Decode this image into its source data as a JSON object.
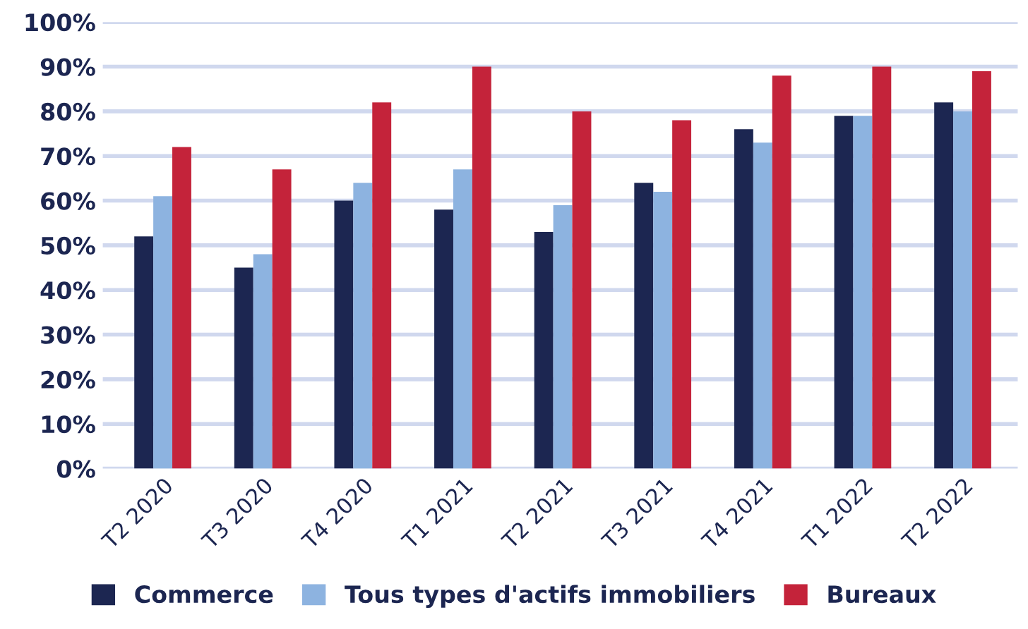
{
  "chart_data": {
    "type": "bar",
    "categories": [
      "T2 2020",
      "T3 2020",
      "T4 2020",
      "T1 2021",
      "T2 2021",
      "T3 2021",
      "T4 2021",
      "T1 2022",
      "T2 2022"
    ],
    "series": [
      {
        "name": "Commerce",
        "color": "#1c2651",
        "values": [
          52,
          45,
          60,
          58,
          53,
          64,
          76,
          79,
          82
        ]
      },
      {
        "name": "Tous types d'actifs immobiliers",
        "color": "#8db3e0",
        "values": [
          61,
          48,
          64,
          67,
          59,
          62,
          73,
          79,
          80
        ]
      },
      {
        "name": "Bureaux",
        "color": "#c4233a",
        "values": [
          72,
          67,
          82,
          90,
          80,
          78,
          88,
          90,
          89
        ]
      }
    ],
    "ylim": [
      0,
      100
    ],
    "yticks": [
      {
        "value": 0,
        "label": "0%"
      },
      {
        "value": 10,
        "label": "10%"
      },
      {
        "value": 20,
        "label": "20%"
      },
      {
        "value": 30,
        "label": "30%"
      },
      {
        "value": 40,
        "label": "40%"
      },
      {
        "value": 50,
        "label": "50%"
      },
      {
        "value": 60,
        "label": "60%"
      },
      {
        "value": 70,
        "label": "70%"
      },
      {
        "value": 80,
        "label": "80%"
      },
      {
        "value": 90,
        "label": "90%"
      },
      {
        "value": 100,
        "label": "100%"
      }
    ],
    "grid": "y",
    "legend": "bottom"
  }
}
